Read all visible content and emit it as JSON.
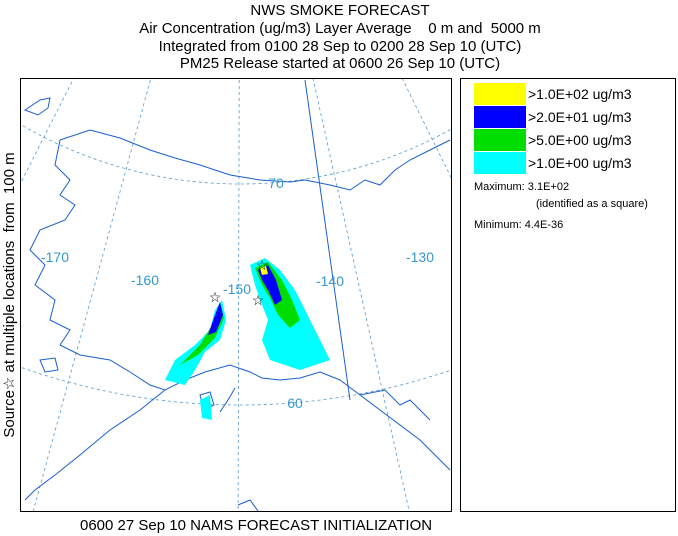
{
  "header": {
    "title": "NWS SMOKE FORECAST",
    "lines": [
      "Air Concentration (ug/m3) Layer Average    0 m and  5000 m",
      "Integrated from 0100 28 Sep to 0200 28 Sep 10 (UTC)",
      "PM25 Release started at 0600 26 Sep 10 (UTC)"
    ]
  },
  "side_label": "Source☆ at multiple locations  from  100 m",
  "map": {
    "labels": [
      "-170",
      "-160",
      "-150",
      "-140",
      "-130",
      "70",
      "60"
    ]
  },
  "legend": {
    "entries": [
      {
        "label": ">1.0E+02 ug/m3",
        "color": "#ffff00"
      },
      {
        "label": ">2.0E+01 ug/m3",
        "color": "#0000ff"
      },
      {
        "label": ">5.0E+00 ug/m3",
        "color": "#00dd00"
      },
      {
        "label": ">1.0E+00 ug/m3",
        "color": "#00ffff"
      }
    ],
    "maximum": "Maximum: 3.1E+02",
    "maximum_note": "(identified as a square)",
    "minimum": "Minimum: 4.4E-36"
  },
  "footer": "0600 27 Sep 10 NAMS FORECAST INITIALIZATION"
}
